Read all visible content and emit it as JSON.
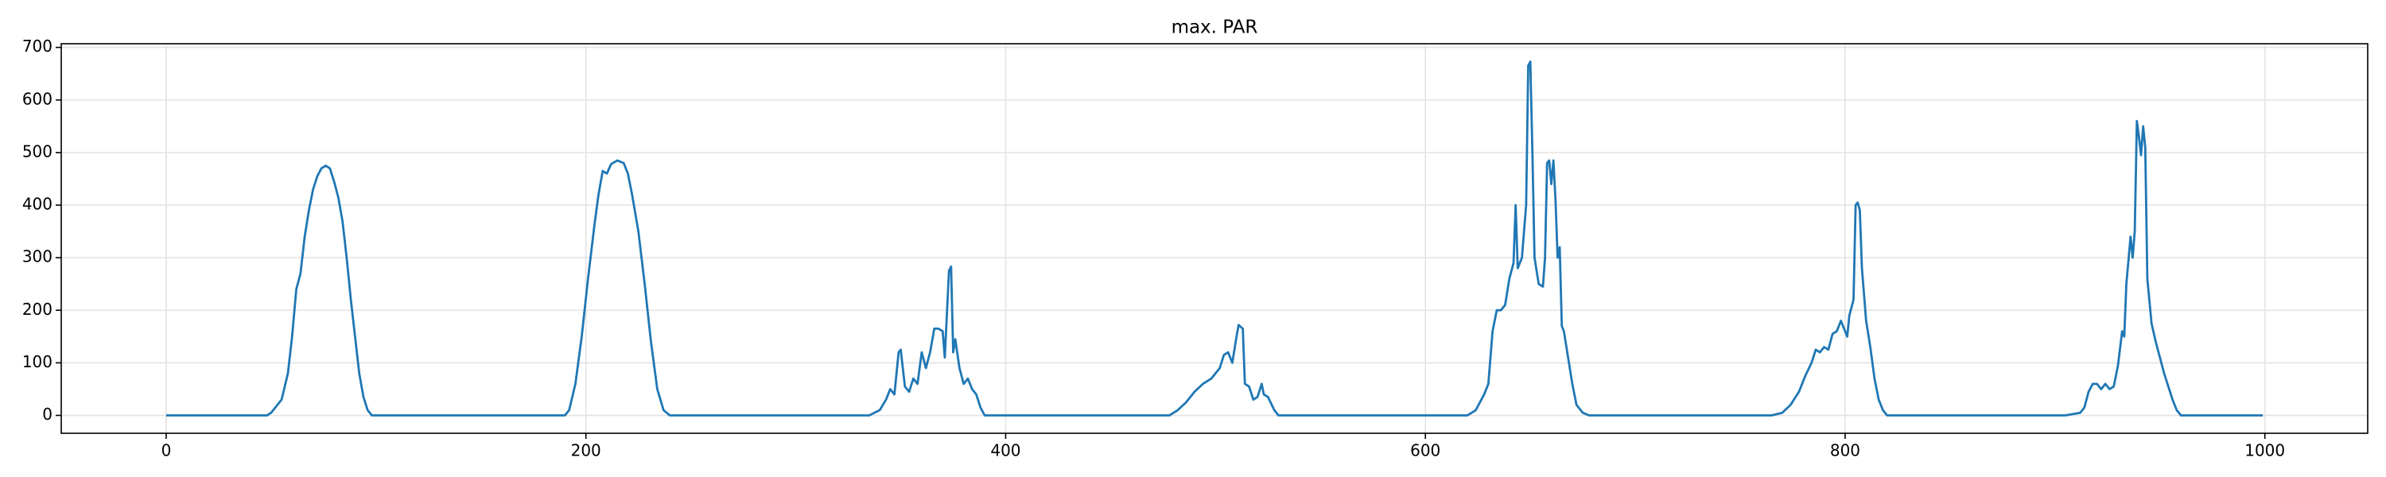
{
  "chart_data": {
    "type": "line",
    "title": "max. PAR",
    "x": [
      0,
      48,
      50,
      55,
      58,
      60,
      62,
      64,
      66,
      68,
      70,
      72,
      74,
      76,
      78,
      80,
      82,
      84,
      86,
      88,
      90,
      92,
      94,
      96,
      98,
      190,
      192,
      195,
      198,
      201,
      204,
      206,
      208,
      210,
      212,
      215,
      218,
      220,
      222,
      225,
      228,
      231,
      234,
      237,
      240,
      335,
      340,
      343,
      345,
      347,
      349,
      350,
      352,
      354,
      356,
      358,
      360,
      362,
      364,
      366,
      368,
      370,
      371,
      373,
      374,
      375,
      376,
      378,
      380,
      382,
      384,
      386,
      388,
      390,
      478,
      482,
      486,
      490,
      494,
      498,
      502,
      504,
      506,
      508,
      510,
      511,
      513,
      514,
      516,
      518,
      520,
      522,
      523,
      525,
      528,
      530,
      620,
      624,
      628,
      630,
      632,
      634,
      636,
      638,
      640,
      642,
      643,
      644,
      646,
      648,
      649,
      650,
      651,
      652,
      654,
      656,
      657,
      658,
      659,
      660,
      661,
      662,
      663,
      664,
      665,
      666,
      668,
      670,
      672,
      675,
      678,
      765,
      770,
      774,
      778,
      781,
      784,
      786,
      788,
      790,
      792,
      794,
      796,
      798,
      800,
      801,
      802,
      804,
      805,
      806,
      807,
      808,
      810,
      812,
      814,
      816,
      818,
      820,
      905,
      912,
      914,
      916,
      918,
      920,
      922,
      924,
      926,
      928,
      930,
      932,
      933,
      934,
      936,
      937,
      938,
      939,
      940,
      941,
      942,
      943,
      944,
      946,
      948,
      950,
      952,
      954,
      956,
      958,
      960,
      999
    ],
    "values": [
      0,
      0,
      5,
      30,
      80,
      150,
      240,
      270,
      340,
      390,
      430,
      455,
      470,
      475,
      470,
      445,
      415,
      370,
      300,
      220,
      150,
      80,
      35,
      10,
      0,
      0,
      10,
      60,
      150,
      260,
      360,
      420,
      465,
      460,
      478,
      485,
      480,
      460,
      420,
      350,
      250,
      140,
      50,
      10,
      0,
      0,
      10,
      30,
      50,
      40,
      120,
      125,
      55,
      45,
      70,
      60,
      120,
      90,
      120,
      165,
      165,
      160,
      110,
      275,
      283,
      120,
      145,
      90,
      60,
      70,
      50,
      40,
      15,
      0,
      0,
      10,
      25,
      45,
      60,
      70,
      90,
      115,
      120,
      100,
      150,
      172,
      165,
      60,
      55,
      30,
      35,
      60,
      40,
      35,
      10,
      0,
      0,
      10,
      40,
      60,
      160,
      200,
      200,
      210,
      260,
      290,
      400,
      280,
      300,
      400,
      665,
      673,
      500,
      300,
      250,
      245,
      300,
      480,
      485,
      440,
      485,
      410,
      300,
      320,
      170,
      160,
      110,
      60,
      20,
      5,
      0,
      0,
      5,
      20,
      45,
      75,
      100,
      125,
      120,
      130,
      125,
      155,
      160,
      180,
      160,
      150,
      190,
      220,
      400,
      405,
      390,
      280,
      180,
      130,
      70,
      30,
      10,
      0,
      0,
      5,
      15,
      45,
      60,
      60,
      50,
      60,
      50,
      55,
      95,
      160,
      150,
      250,
      340,
      300,
      350,
      560,
      530,
      495,
      550,
      510,
      260,
      175,
      140,
      110,
      80,
      55,
      30,
      10,
      0,
      0
    ],
    "color": "#1f77b4",
    "xlim": [
      -50,
      1049
    ],
    "ylim": [
      -34,
      707
    ],
    "xticks": [
      0,
      200,
      400,
      600,
      800,
      1000
    ],
    "yticks": [
      0,
      100,
      200,
      300,
      400,
      500,
      600,
      700
    ],
    "grid": true
  }
}
